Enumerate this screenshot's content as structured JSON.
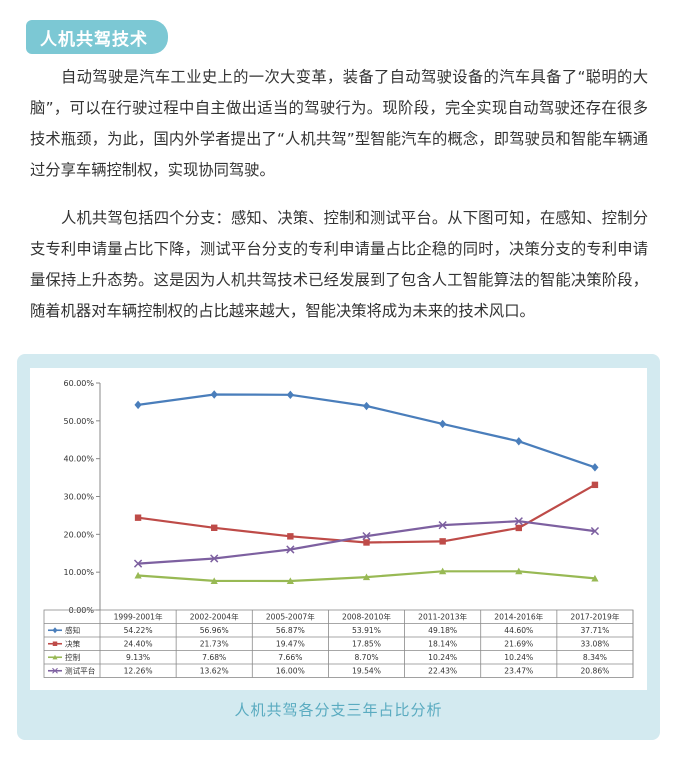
{
  "header": {
    "title": "人机共驾技术"
  },
  "paragraphs": [
    "自动驾驶是汽车工业史上的一次大变革，装备了自动驾驶设备的汽车具备了“聪明的大脑”，可以在行驶过程中自主做出适当的驾驶行为。现阶段，完全实现自动驾驶还存在很多技术瓶颈，为此，国内外学者提出了“人机共驾”型智能汽车的概念，即驾驶员和智能车辆通过分享车辆控制权，实现协同驾驶。",
    "人机共驾包括四个分支：感知、决策、控制和测试平台。从下图可知，在感知、控制分支专利申请量占比下降，测试平台分支的专利申请量占比企稳的同时，决策分支的专利申请量保持上升态势。这是因为人机共驾技术已经发展到了包含人工智能算法的智能决策阶段，随着机器对车辆控制权的占比越来越大，智能决策将成为未来的技术风口。"
  ],
  "caption": "人机共驾各分支三年占比分析",
  "chart_data": {
    "type": "line",
    "categories": [
      "1999-2001年",
      "2002-2004年",
      "2005-2007年",
      "2008-2010年",
      "2011-2013年",
      "2014-2016年",
      "2017-2019年"
    ],
    "y_ticks": [
      "60.00%",
      "50.00%",
      "40.00%",
      "30.00%",
      "20.00%",
      "10.00%",
      "0.00%"
    ],
    "ylim": [
      0,
      60
    ],
    "grid": false,
    "legend": "data-table",
    "series": [
      {
        "name": "感知",
        "color": "#4a7ebb",
        "marker": "diamond",
        "values": [
          54.22,
          56.96,
          56.87,
          53.91,
          49.18,
          44.6,
          37.71
        ],
        "labels": [
          "54.22%",
          "56.96%",
          "56.87%",
          "53.91%",
          "49.18%",
          "44.60%",
          "37.71%"
        ]
      },
      {
        "name": "决策",
        "color": "#be4b48",
        "marker": "square",
        "values": [
          24.4,
          21.73,
          19.47,
          17.85,
          18.14,
          21.69,
          33.08
        ],
        "labels": [
          "24.40%",
          "21.73%",
          "19.47%",
          "17.85%",
          "18.14%",
          "21.69%",
          "33.08%"
        ]
      },
      {
        "name": "控制",
        "color": "#98b954",
        "marker": "triangle",
        "values": [
          9.13,
          7.68,
          7.66,
          8.7,
          10.24,
          10.24,
          8.34
        ],
        "labels": [
          "9.13%",
          "7.68%",
          "7.66%",
          "8.70%",
          "10.24%",
          "10.24%",
          "8.34%"
        ]
      },
      {
        "name": "测试平台",
        "color": "#7d60a0",
        "marker": "x",
        "values": [
          12.26,
          13.62,
          16.0,
          19.54,
          22.43,
          23.47,
          20.86
        ],
        "labels": [
          "12.26%",
          "13.62%",
          "16.00%",
          "19.54%",
          "22.43%",
          "23.47%",
          "20.86%"
        ]
      }
    ]
  }
}
